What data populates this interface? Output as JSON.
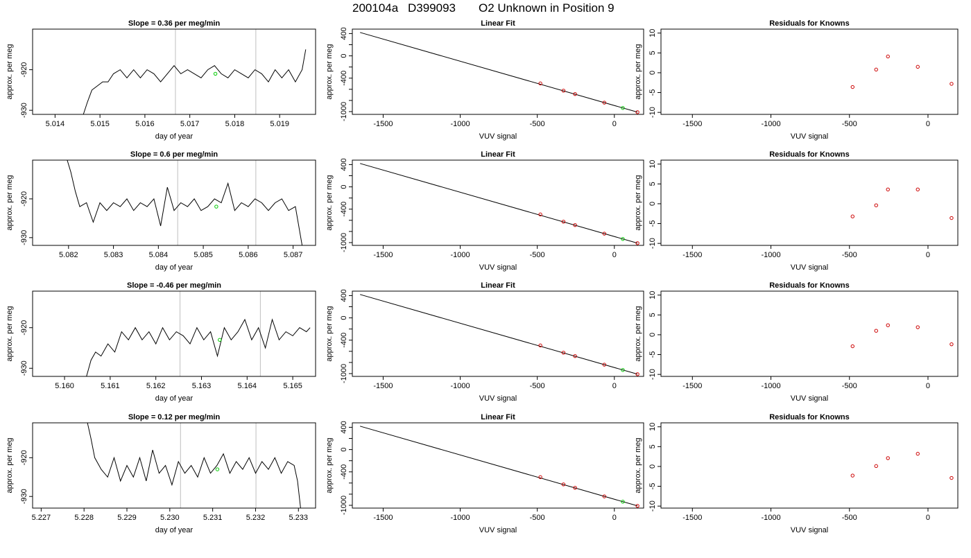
{
  "figure": {
    "title_parts": [
      "200104a",
      "D399093",
      "O2 Unknown in Position  9"
    ]
  },
  "colors": {
    "trace": "#000000",
    "vline": "#bebebe",
    "unknown_point": "#00cc00",
    "known_point": "#cc0000",
    "fit_line": "#000000"
  },
  "chart_data": [
    {
      "type": "line",
      "row": 1,
      "title": "Slope =  0.36  per meg/min",
      "xlabel": "day of year",
      "ylabel": "approx. per meg",
      "xlim": [
        5.0135,
        5.0198
      ],
      "ylim": [
        -931,
        -910
      ],
      "xticks": [
        5.014,
        5.015,
        5.016,
        5.017,
        5.018,
        5.019
      ],
      "xtick_labels": [
        "5.014",
        "5.015",
        "5.016",
        "5.017",
        "5.018",
        "5.019"
      ],
      "yticks": [
        -930,
        -920
      ],
      "ytick_labels": [
        "-930",
        "-920"
      ],
      "trace_x": [
        5.01463,
        5.01472,
        5.01482,
        5.01494,
        5.01506,
        5.01518,
        5.0153,
        5.01545,
        5.0156,
        5.01575,
        5.0159,
        5.01605,
        5.0162,
        5.01635,
        5.0165,
        5.01665,
        5.0168,
        5.01695,
        5.0171,
        5.01725,
        5.0174,
        5.01755,
        5.0177,
        5.01785,
        5.018,
        5.01815,
        5.0183,
        5.01845,
        5.0186,
        5.01875,
        5.0189,
        5.01905,
        5.0192,
        5.01935,
        5.0195,
        5.01958
      ],
      "trace_y": [
        -931,
        -928,
        -925,
        -924,
        -923,
        -923,
        -921,
        -920,
        -922,
        -920,
        -922,
        -920,
        -921,
        -923,
        -921,
        -919,
        -921,
        -920,
        -921,
        -922,
        -920,
        -919,
        -921,
        -922,
        -920,
        -921,
        -922,
        -920,
        -921,
        -923,
        -920,
        -922,
        -920,
        -923,
        -920,
        -915
      ],
      "vlines": [
        5.01668,
        5.01847
      ],
      "unknown_point": [
        5.01757,
        -921
      ]
    },
    {
      "type": "scatter",
      "row": 1,
      "title": "Linear Fit",
      "xlabel": "VUV signal",
      "ylabel": "approx. per meg",
      "xlim": [
        -1700,
        190
      ],
      "ylim": [
        -1050,
        480
      ],
      "xticks": [
        -1500,
        -1000,
        -500,
        0
      ],
      "xtick_labels": [
        "-1500",
        "-1000",
        "-500",
        "0"
      ],
      "yticks": [
        -1000,
        -800,
        -600,
        -400,
        -200,
        0,
        200,
        400
      ],
      "ytick_labels": [
        "-1000",
        "",
        "",
        "-400",
        "",
        "0",
        "",
        "400"
      ],
      "fit_line": [
        [
          -1650,
          420
        ],
        [
          150,
          -1010
        ]
      ],
      "knowns": [
        [
          -480,
          -495
        ],
        [
          -330,
          -625
        ],
        [
          -255,
          -685
        ],
        [
          -65,
          -840
        ],
        [
          150,
          -1010
        ]
      ],
      "unknown": [
        55,
        -935
      ]
    },
    {
      "type": "scatter",
      "row": 1,
      "title": "Residuals for Knowns",
      "xlabel": "VUV signal",
      "ylabel": "approx. per meg",
      "xlim": [
        -1700,
        190
      ],
      "ylim": [
        -10.5,
        11
      ],
      "xticks": [
        -1500,
        -1000,
        -500,
        0
      ],
      "xtick_labels": [
        "-1500",
        "-1000",
        "-500",
        "0"
      ],
      "yticks": [
        -10,
        -5,
        0,
        5,
        10
      ],
      "ytick_labels": [
        "-10",
        "-5",
        "0",
        "5",
        "10"
      ],
      "residuals": [
        [
          -480,
          -3.6
        ],
        [
          -330,
          0.8
        ],
        [
          -255,
          4.1
        ],
        [
          -65,
          1.5
        ],
        [
          150,
          -2.8
        ]
      ]
    },
    {
      "type": "line",
      "row": 2,
      "title": "Slope =  0.6  per meg/min",
      "xlabel": "day of year",
      "ylabel": "approx. per meg",
      "xlim": [
        5.0812,
        5.0875
      ],
      "ylim": [
        -932,
        -910
      ],
      "xticks": [
        5.082,
        5.083,
        5.084,
        5.085,
        5.086,
        5.087
      ],
      "xtick_labels": [
        "5.082",
        "5.083",
        "5.084",
        "5.085",
        "5.086",
        "5.087"
      ],
      "yticks": [
        -930,
        -920
      ],
      "ytick_labels": [
        "-930",
        "-920"
      ],
      "trace_x": [
        5.08197,
        5.08205,
        5.08215,
        5.08225,
        5.0824,
        5.08255,
        5.0827,
        5.08285,
        5.083,
        5.08315,
        5.0833,
        5.08345,
        5.0836,
        5.08375,
        5.0839,
        5.08405,
        5.0842,
        5.08435,
        5.0845,
        5.08465,
        5.0848,
        5.08495,
        5.0851,
        5.08525,
        5.0854,
        5.08555,
        5.0857,
        5.08585,
        5.086,
        5.08615,
        5.0863,
        5.08645,
        5.0866,
        5.08675,
        5.0869,
        5.08705,
        5.0872
      ],
      "trace_y": [
        -910,
        -913,
        -918,
        -922,
        -921,
        -926,
        -921,
        -923,
        -921,
        -922,
        -920,
        -923,
        -921,
        -922,
        -920,
        -927,
        -917,
        -923,
        -921,
        -922,
        -920,
        -923,
        -922,
        -920,
        -921,
        -916,
        -923,
        -921,
        -922,
        -920,
        -921,
        -923,
        -921,
        -920,
        -923,
        -922,
        -932
      ],
      "vlines": [
        5.08443,
        5.08617
      ],
      "unknown_point": [
        5.08529,
        -922
      ]
    },
    {
      "type": "scatter",
      "row": 2,
      "title": "Linear Fit",
      "xlabel": "VUV signal",
      "ylabel": "approx. per meg",
      "xlim": [
        -1700,
        190
      ],
      "ylim": [
        -1050,
        480
      ],
      "xticks": [
        -1500,
        -1000,
        -500,
        0
      ],
      "xtick_labels": [
        "-1500",
        "-1000",
        "-500",
        "0"
      ],
      "yticks": [
        -1000,
        -800,
        -600,
        -400,
        -200,
        0,
        200,
        400
      ],
      "ytick_labels": [
        "-1000",
        "",
        "",
        "-400",
        "",
        "0",
        "",
        "400"
      ],
      "fit_line": [
        [
          -1650,
          420
        ],
        [
          150,
          -1010
        ]
      ],
      "knowns": [
        [
          -480,
          -495
        ],
        [
          -330,
          -625
        ],
        [
          -255,
          -685
        ],
        [
          -65,
          -840
        ],
        [
          150,
          -1010
        ]
      ],
      "unknown": [
        55,
        -935
      ]
    },
    {
      "type": "scatter",
      "row": 2,
      "title": "Residuals for Knowns",
      "xlabel": "VUV signal",
      "ylabel": "approx. per meg",
      "xlim": [
        -1700,
        190
      ],
      "ylim": [
        -10.5,
        11
      ],
      "xticks": [
        -1500,
        -1000,
        -500,
        0
      ],
      "xtick_labels": [
        "-1500",
        "-1000",
        "-500",
        "0"
      ],
      "yticks": [
        -10,
        -5,
        0,
        5,
        10
      ],
      "ytick_labels": [
        "-10",
        "-5",
        "0",
        "5",
        "10"
      ],
      "residuals": [
        [
          -480,
          -3.2
        ],
        [
          -330,
          -0.4
        ],
        [
          -255,
          3.6
        ],
        [
          -65,
          3.6
        ],
        [
          150,
          -3.6
        ]
      ]
    },
    {
      "type": "line",
      "row": 3,
      "title": "Slope =  -0.46  per meg/min",
      "xlabel": "day of year",
      "ylabel": "approx. per meg",
      "xlim": [
        5.1593,
        5.1655
      ],
      "ylim": [
        -932,
        -911
      ],
      "xticks": [
        5.16,
        5.161,
        5.162,
        5.163,
        5.164,
        5.165
      ],
      "xtick_labels": [
        "5.160",
        "5.161",
        "5.162",
        "5.163",
        "5.164",
        "5.165"
      ],
      "yticks": [
        -930,
        -920
      ],
      "ytick_labels": [
        "-930",
        "-920"
      ],
      "trace_x": [
        5.16048,
        5.16058,
        5.16068,
        5.1608,
        5.16095,
        5.1611,
        5.16125,
        5.1614,
        5.16155,
        5.1617,
        5.16185,
        5.162,
        5.16215,
        5.1623,
        5.16245,
        5.1626,
        5.16275,
        5.1629,
        5.16305,
        5.1632,
        5.16335,
        5.1635,
        5.16365,
        5.1638,
        5.16395,
        5.1641,
        5.16425,
        5.1644,
        5.16455,
        5.1647,
        5.16485,
        5.165,
        5.16515,
        5.1653,
        5.16538
      ],
      "trace_y": [
        -932,
        -928,
        -926,
        -927,
        -924,
        -926,
        -921,
        -923,
        -920,
        -923,
        -921,
        -924,
        -920,
        -923,
        -921,
        -922,
        -924,
        -920,
        -923,
        -921,
        -927,
        -920,
        -923,
        -921,
        -918,
        -923,
        -920,
        -925,
        -918,
        -923,
        -921,
        -922,
        -920,
        -921,
        -920
      ],
      "vlines": [
        5.16253,
        5.16429
      ],
      "unknown_point": [
        5.1634,
        -923
      ]
    },
    {
      "type": "scatter",
      "row": 3,
      "title": "Linear Fit",
      "xlabel": "VUV signal",
      "ylabel": "approx. per meg",
      "xlim": [
        -1700,
        190
      ],
      "ylim": [
        -1050,
        480
      ],
      "xticks": [
        -1500,
        -1000,
        -500,
        0
      ],
      "xtick_labels": [
        "-1500",
        "-1000",
        "-500",
        "0"
      ],
      "yticks": [
        -1000,
        -800,
        -600,
        -400,
        -200,
        0,
        200,
        400
      ],
      "ytick_labels": [
        "-1000",
        "",
        "",
        "-400",
        "",
        "0",
        "",
        "400"
      ],
      "fit_line": [
        [
          -1650,
          420
        ],
        [
          150,
          -1010
        ]
      ],
      "knowns": [
        [
          -480,
          -495
        ],
        [
          -330,
          -625
        ],
        [
          -255,
          -685
        ],
        [
          -65,
          -840
        ],
        [
          150,
          -1010
        ]
      ],
      "unknown": [
        55,
        -935
      ]
    },
    {
      "type": "scatter",
      "row": 3,
      "title": "Residuals for Knowns",
      "xlabel": "VUV signal",
      "ylabel": "approx. per meg",
      "xlim": [
        -1700,
        190
      ],
      "ylim": [
        -10.5,
        11
      ],
      "xticks": [
        -1500,
        -1000,
        -500,
        0
      ],
      "xtick_labels": [
        "-1500",
        "-1000",
        "-500",
        "0"
      ],
      "yticks": [
        -10,
        -5,
        0,
        5,
        10
      ],
      "ytick_labels": [
        "-10",
        "-5",
        "0",
        "5",
        "10"
      ],
      "residuals": [
        [
          -480,
          -2.9
        ],
        [
          -330,
          1.0
        ],
        [
          -255,
          2.4
        ],
        [
          -65,
          1.9
        ],
        [
          150,
          -2.4
        ]
      ]
    },
    {
      "type": "line",
      "row": 4,
      "title": "Slope =  0.12  per meg/min",
      "xlabel": "day of year",
      "ylabel": "approx. per meg",
      "xlim": [
        5.2268,
        5.2334
      ],
      "ylim": [
        -933,
        -911
      ],
      "xticks": [
        5.227,
        5.228,
        5.229,
        5.23,
        5.231,
        5.232,
        5.233
      ],
      "xtick_labels": [
        "5.227",
        "5.228",
        "5.229",
        "5.230",
        "5.231",
        "5.232",
        "5.233"
      ],
      "yticks": [
        -930,
        -920
      ],
      "ytick_labels": [
        "-930",
        "-920"
      ],
      "trace_x": [
        5.22808,
        5.22816,
        5.22825,
        5.2284,
        5.22855,
        5.2287,
        5.22885,
        5.229,
        5.22915,
        5.2293,
        5.22945,
        5.2296,
        5.22975,
        5.2299,
        5.23005,
        5.2302,
        5.23035,
        5.2305,
        5.23065,
        5.2308,
        5.23095,
        5.2311,
        5.23125,
        5.2314,
        5.23155,
        5.2317,
        5.23185,
        5.232,
        5.23215,
        5.2323,
        5.23245,
        5.2326,
        5.23275,
        5.2329,
        5.23298,
        5.23305
      ],
      "trace_y": [
        -911,
        -915,
        -920,
        -923,
        -925,
        -920,
        -926,
        -922,
        -925,
        -920,
        -926,
        -918,
        -924,
        -922,
        -927,
        -921,
        -924,
        -922,
        -925,
        -920,
        -924,
        -922,
        -919,
        -924,
        -921,
        -923,
        -920,
        -924,
        -921,
        -923,
        -920,
        -924,
        -921,
        -922,
        -926,
        -933
      ],
      "vlines": [
        5.23025,
        5.23201
      ],
      "unknown_point": [
        5.23111,
        -923
      ]
    },
    {
      "type": "scatter",
      "row": 4,
      "title": "Linear Fit",
      "xlabel": "VUV signal",
      "ylabel": "approx. per meg",
      "xlim": [
        -1700,
        190
      ],
      "ylim": [
        -1050,
        480
      ],
      "xticks": [
        -1500,
        -1000,
        -500,
        0
      ],
      "xtick_labels": [
        "-1500",
        "-1000",
        "-500",
        "0"
      ],
      "yticks": [
        -1000,
        -800,
        -600,
        -400,
        -200,
        0,
        200,
        400
      ],
      "ytick_labels": [
        "-1000",
        "",
        "",
        "-400",
        "",
        "0",
        "",
        "400"
      ],
      "fit_line": [
        [
          -1650,
          420
        ],
        [
          150,
          -1010
        ]
      ],
      "knowns": [
        [
          -480,
          -495
        ],
        [
          -330,
          -625
        ],
        [
          -255,
          -685
        ],
        [
          -65,
          -840
        ],
        [
          150,
          -1010
        ]
      ],
      "unknown": [
        55,
        -935
      ]
    },
    {
      "type": "scatter",
      "row": 4,
      "title": "Residuals for Knowns",
      "xlabel": "VUV signal",
      "ylabel": "approx. per meg",
      "xlim": [
        -1700,
        190
      ],
      "ylim": [
        -10.5,
        11
      ],
      "xticks": [
        -1500,
        -1000,
        -500,
        0
      ],
      "xtick_labels": [
        "-1500",
        "-1000",
        "-500",
        "0"
      ],
      "yticks": [
        -10,
        -5,
        0,
        5,
        10
      ],
      "ytick_labels": [
        "-10",
        "-5",
        "0",
        "5",
        "10"
      ],
      "residuals": [
        [
          -480,
          -2.3
        ],
        [
          -330,
          0.1
        ],
        [
          -255,
          2.1
        ],
        [
          -65,
          3.2
        ],
        [
          150,
          -2.9
        ]
      ]
    }
  ]
}
